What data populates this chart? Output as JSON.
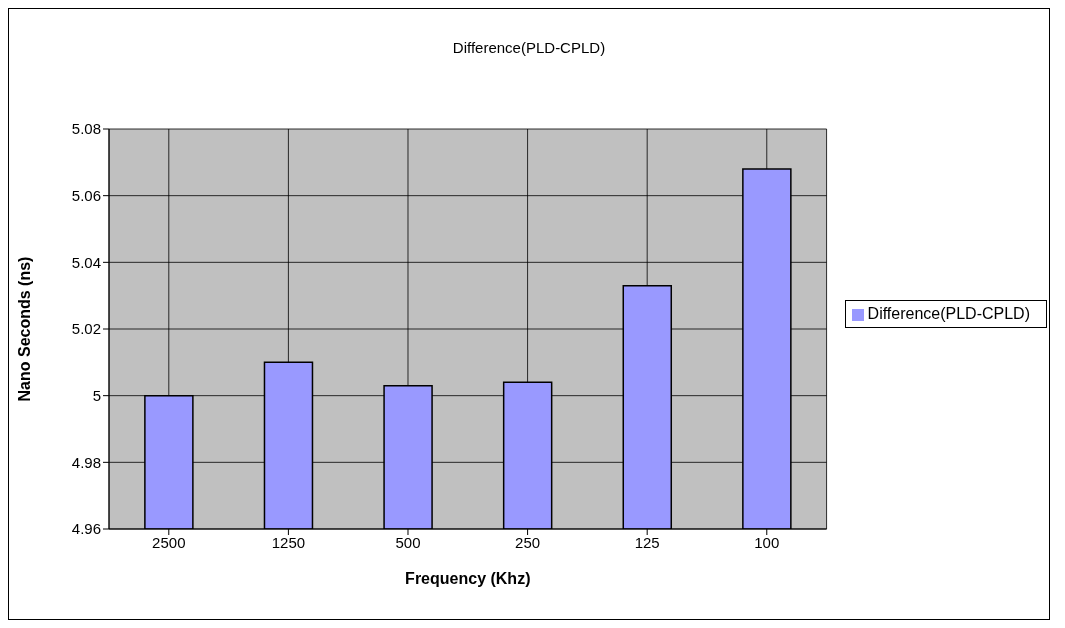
{
  "chart_data": {
    "type": "bar",
    "title": "Difference(PLD-CPLD)",
    "xlabel": "Frequency (Khz)",
    "ylabel": "Nano Seconds (ns)",
    "categories": [
      "2500",
      "1250",
      "500",
      "250",
      "125",
      "100"
    ],
    "series": [
      {
        "name": "Difference(PLD-CPLD)",
        "color": "#9999ff",
        "values": [
          5.0,
          5.01,
          5.003,
          5.004,
          5.033,
          5.068
        ]
      }
    ],
    "ylim": [
      4.96,
      5.08
    ],
    "yticks": [
      4.96,
      4.98,
      5,
      5.02,
      5.04,
      5.06,
      5.08
    ],
    "grid": true,
    "legend": "right"
  }
}
